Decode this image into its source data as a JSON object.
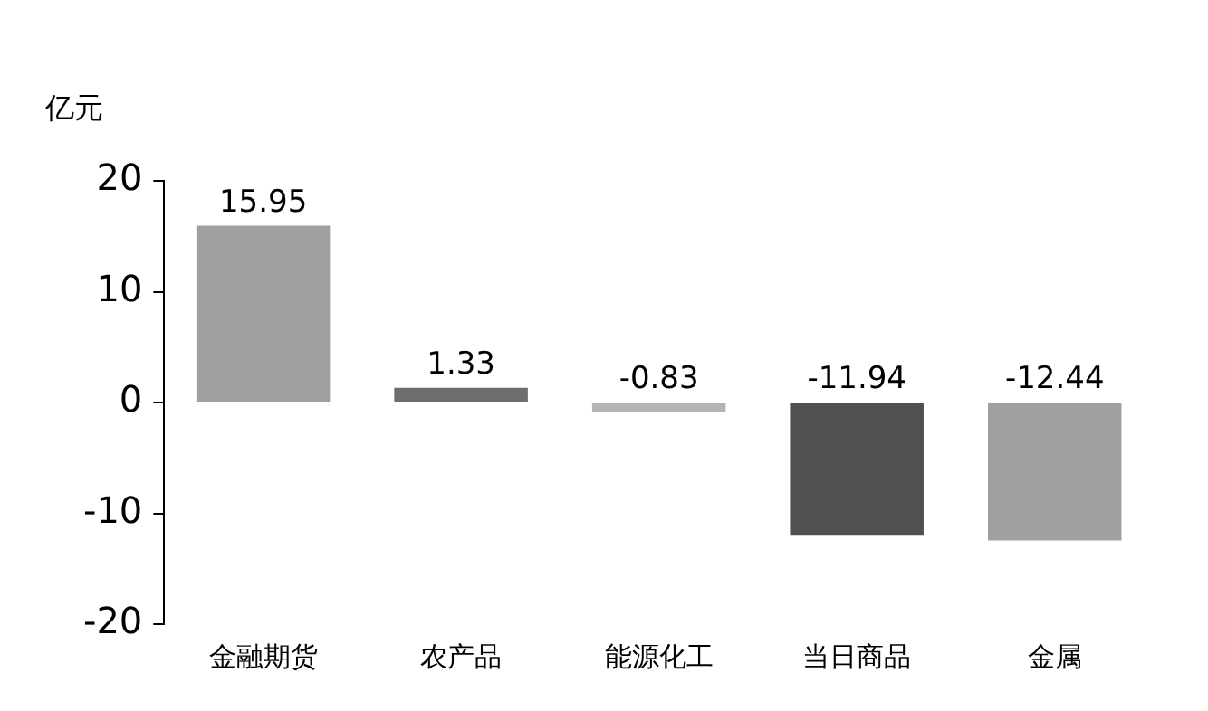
{
  "chart_data": {
    "type": "bar",
    "ylabel": "亿元",
    "categories": [
      "金融期货",
      "农产品",
      "能源化工",
      "当日商品",
      "金属"
    ],
    "values": [
      15.95,
      1.33,
      -0.83,
      -11.94,
      -12.44
    ],
    "colors": [
      "#a0a0a0",
      "#6e6e6e",
      "#b4b4b4",
      "#505050",
      "#a0a0a0"
    ],
    "ylim": [
      -20,
      20
    ],
    "yticks": [
      -20,
      -10,
      0,
      10,
      20
    ],
    "grid": false,
    "legend": false,
    "data_labels": true
  }
}
